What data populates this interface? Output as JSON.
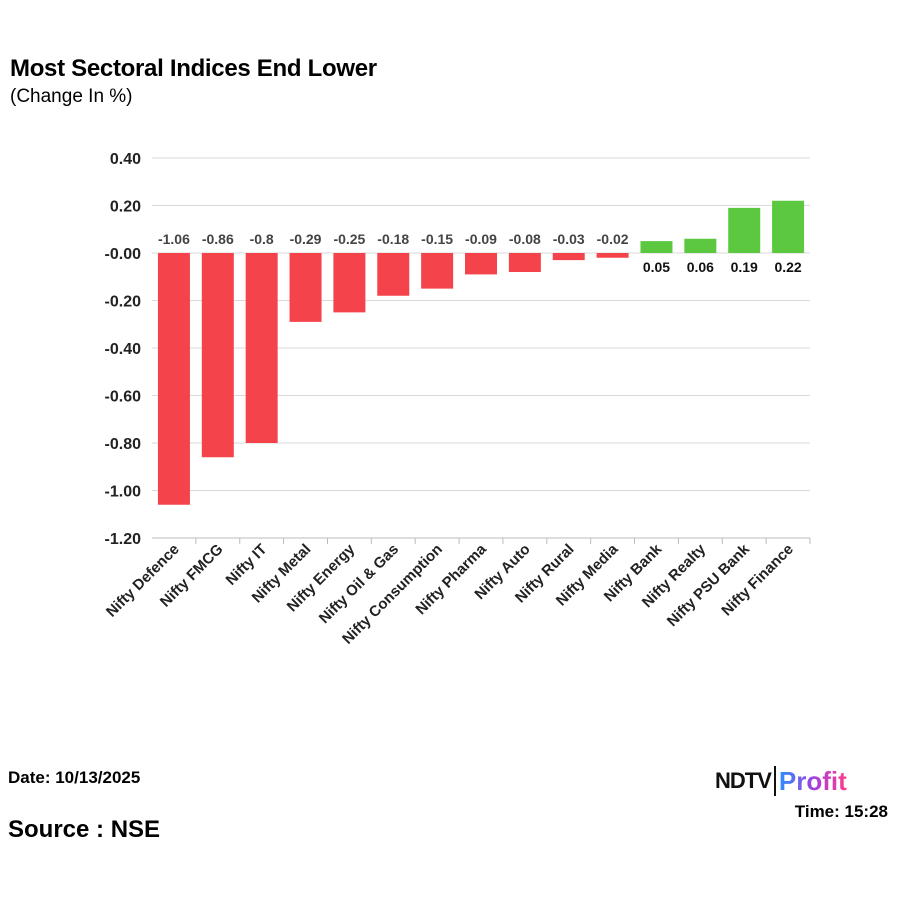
{
  "header": {
    "title": "Most Sectoral Indices End Lower",
    "subtitle": "(Change In %)"
  },
  "footer": {
    "date": "Date: 10/13/2025",
    "source": "Source : NSE",
    "time": "Time: 15:28",
    "logo_ndtv": "NDTV",
    "logo_profit": "Profit"
  },
  "colors": {
    "negative": "#f5434b",
    "positive": "#5cc840",
    "grid": "#d9d9d9"
  },
  "chart_data": {
    "type": "bar",
    "title": "Most Sectoral Indices End Lower",
    "ylabel": "Change In %",
    "categories": [
      "Nifty Defence",
      "Nifty FMCG",
      "Nifty IT",
      "Nifty Metal",
      "Nifty Energy",
      "Nifty Oil & Gas",
      "Nifty Consumption",
      "Nifty Pharma",
      "Nifty Auto",
      "Nifty Rural",
      "Nifty Media",
      "Nifty Bank",
      "Nifty Realty",
      "Nifty PSU Bank",
      "Nifty Finance"
    ],
    "values": [
      -1.06,
      -0.86,
      -0.8,
      -0.29,
      -0.25,
      -0.18,
      -0.15,
      -0.09,
      -0.08,
      -0.03,
      -0.02,
      0.05,
      0.06,
      0.19,
      0.22
    ],
    "ylim": [
      -1.2,
      0.4
    ],
    "yticks": [
      "0.40",
      "0.20",
      "-0.00",
      "-0.20",
      "-0.40",
      "-0.60",
      "-0.80",
      "-1.00",
      "-1.20"
    ],
    "ytick_values": [
      0.4,
      0.2,
      0,
      -0.2,
      -0.4,
      -0.6,
      -0.8,
      -1.0,
      -1.2
    ],
    "grid": true,
    "legend": "none"
  }
}
